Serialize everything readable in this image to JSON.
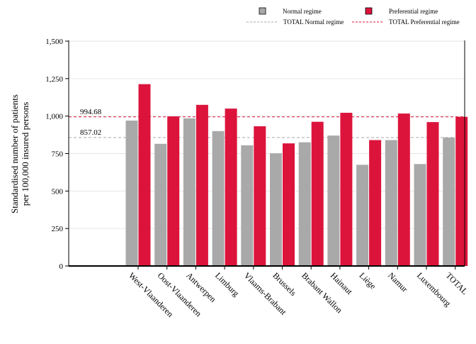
{
  "chart_data": {
    "type": "bar",
    "ylabel": [
      "Standardised number of patients",
      "per 100,000 insured persons"
    ],
    "xlabel": "",
    "ylim": [
      0,
      1500
    ],
    "yticks": [
      0,
      250,
      500,
      750,
      1000,
      1250,
      1500
    ],
    "ytick_labels": [
      "0",
      "250",
      "500",
      "750",
      "1,000",
      "1,250",
      "1,500"
    ],
    "grid": true,
    "legend_position": "top-right",
    "categories": [
      "West-Vlaanderen",
      "Oost-Vlaanderen",
      "Antwerpen",
      "Limburg",
      "Vlaams-Brabant",
      "Brussels",
      "Brabant Wallon",
      "Hainaut",
      "Liège",
      "Namur",
      "Luxembourg",
      "TOTAL"
    ],
    "series": [
      {
        "name": "Normal regime",
        "color": "#a9a9a9",
        "values": [
          970,
          815,
          985,
          900,
          805,
          752,
          825,
          870,
          675,
          840,
          680,
          857
        ]
      },
      {
        "name": "Preferential regime",
        "color": "#dc143c",
        "values": [
          1213,
          998,
          1075,
          1050,
          932,
          818,
          962,
          1022,
          840,
          1017,
          960,
          995
        ]
      }
    ],
    "reference_lines": [
      {
        "name": "TOTAL Normal regime",
        "value": 857.02,
        "label": "857.02",
        "color": "#a9a9a9"
      },
      {
        "name": "TOTAL Preferential regime",
        "value": 994.68,
        "label": "994.68",
        "color": "#dc143c"
      }
    ]
  }
}
